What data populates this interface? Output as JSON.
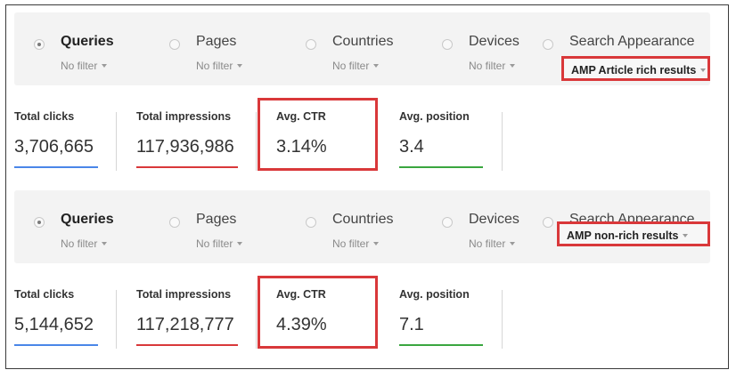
{
  "panels": [
    {
      "options": [
        {
          "label": "Queries",
          "filter": "No filter",
          "selected": true
        },
        {
          "label": "Pages",
          "filter": "No filter",
          "selected": false
        },
        {
          "label": "Countries",
          "filter": "No filter",
          "selected": false
        },
        {
          "label": "Devices",
          "filter": "No filter",
          "selected": false
        },
        {
          "label": "Search Appearance",
          "filter": "AMP Article rich results",
          "selected": false
        }
      ],
      "metrics": [
        {
          "label": "Total clicks",
          "value": "3,706,665"
        },
        {
          "label": "Total impressions",
          "value": "117,936,986"
        },
        {
          "label": "Avg. CTR",
          "value": "3.14%"
        },
        {
          "label": "Avg. position",
          "value": "3.4"
        }
      ]
    },
    {
      "options": [
        {
          "label": "Queries",
          "filter": "No filter",
          "selected": true
        },
        {
          "label": "Pages",
          "filter": "No filter",
          "selected": false
        },
        {
          "label": "Countries",
          "filter": "No filter",
          "selected": false
        },
        {
          "label": "Devices",
          "filter": "No filter",
          "selected": false
        },
        {
          "label": "Search Appearance",
          "filter": "AMP non-rich results",
          "selected": false
        }
      ],
      "metrics": [
        {
          "label": "Total clicks",
          "value": "5,144,652"
        },
        {
          "label": "Total impressions",
          "value": "117,218,777"
        },
        {
          "label": "Avg. CTR",
          "value": "4.39%"
        },
        {
          "label": "Avg. position",
          "value": "7.1"
        }
      ]
    }
  ],
  "colors": {
    "highlight": "#d9383a",
    "clicks": "#4a86e8",
    "impressions": "#d9383a",
    "ctr": "#f4a63b",
    "position": "#3aa63f"
  }
}
